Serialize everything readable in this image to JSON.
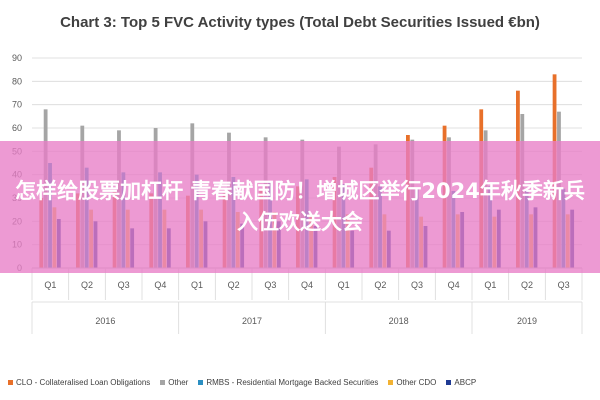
{
  "chart_data": {
    "type": "bar",
    "title": "Chart 3: Top 5 FVC Activity types (Total Debt Securities Issued €bn)",
    "xlabel": "",
    "ylabel": "",
    "ylim": [
      0,
      90
    ],
    "yticks": [
      0,
      10,
      20,
      30,
      40,
      50,
      60,
      70,
      80,
      90
    ],
    "grid": true,
    "legend_position": "bottom",
    "categories": [
      "Q1",
      "Q2",
      "Q3",
      "Q4",
      "Q1",
      "Q2",
      "Q3",
      "Q4",
      "Q1",
      "Q2",
      "Q3",
      "Q4",
      "Q1",
      "Q2",
      "Q3"
    ],
    "groups": [
      {
        "label": "2016",
        "count": 4
      },
      {
        "label": "2017",
        "count": 4
      },
      {
        "label": "2018",
        "count": 4
      },
      {
        "label": "2019",
        "count": 3
      }
    ],
    "series": [
      {
        "name": "CLO - Collateralised Loan Obligations",
        "color": "#e8702a",
        "values": [
          30,
          32,
          33,
          32,
          31,
          32,
          34,
          35,
          39,
          43,
          57,
          61,
          68,
          76,
          83
        ]
      },
      {
        "name": "Other",
        "color": "#a5a5a5",
        "values": [
          68,
          61,
          59,
          60,
          62,
          58,
          56,
          55,
          52,
          53,
          55,
          56,
          59,
          66,
          67
        ]
      },
      {
        "name": "RMBS - Residential Mortgage Backed Securities",
        "color": "#2b8fc2",
        "values": [
          45,
          43,
          41,
          41,
          40,
          39,
          37,
          38,
          36,
          35,
          34,
          33,
          35,
          34,
          34
        ]
      },
      {
        "name": "Other CDO",
        "color": "#f2b233",
        "values": [
          26,
          25,
          25,
          25,
          25,
          24,
          24,
          23,
          23,
          23,
          22,
          23,
          22,
          23,
          23
        ]
      },
      {
        "name": "ABCP",
        "color": "#1f3a93",
        "values": [
          21,
          20,
          17,
          17,
          20,
          19,
          20,
          18,
          16,
          16,
          18,
          24,
          25,
          26,
          25
        ]
      }
    ]
  },
  "overlay_banner": {
    "text": "怎样给股票加杠杆 青春献国防！增城区举行2024年秋季新兵入伍欢送大会"
  }
}
